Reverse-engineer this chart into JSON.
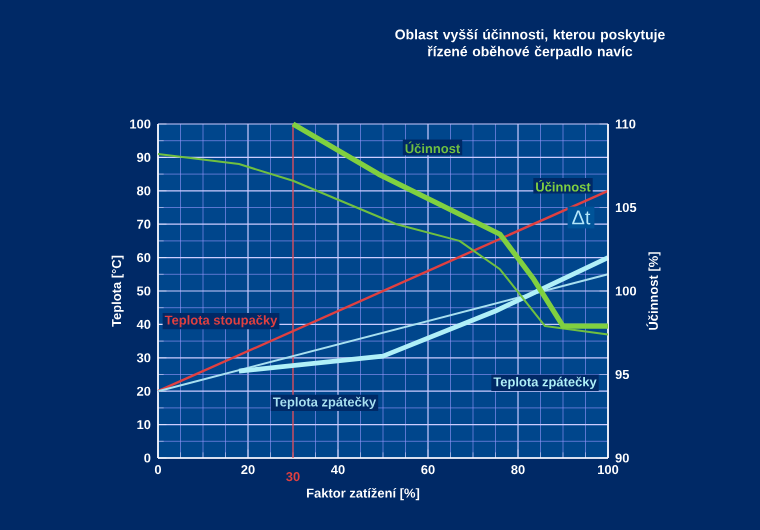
{
  "chart_data": {
    "type": "line",
    "title": "Oblast vyšší účinnosti, kterou poskytuje řízené oběhové čerpadlo navíc",
    "xlabel": "Faktor zatížení [%]",
    "ylabel": "Teplota [°C]",
    "y2label": "Účinnost [%]",
    "xlim": [
      0,
      100
    ],
    "ylim": [
      0,
      100
    ],
    "y2lim": [
      90,
      110
    ],
    "xticks": [
      0,
      20,
      40,
      60,
      80,
      100
    ],
    "yticks": [
      0,
      10,
      20,
      30,
      40,
      50,
      60,
      70,
      80,
      90,
      100
    ],
    "y2ticks": [
      90,
      95,
      100,
      105,
      110
    ],
    "grid": true,
    "marker": "none",
    "line_style": "solid",
    "ref_lines": [
      {
        "axis": "x",
        "value": 30,
        "label": "30",
        "color": "#e04040"
      }
    ],
    "annotations": [
      "Δt"
    ],
    "series": [
      {
        "name": "Teplota stoupačky",
        "color": "#e04040",
        "x": [
          0,
          100
        ],
        "values": [
          20,
          80
        ]
      },
      {
        "name": "Teplota zpátečky",
        "color": "#a8e0f0",
        "x": [
          0,
          100
        ],
        "values": [
          20,
          55
        ]
      },
      {
        "name": "Teplota zpátečky",
        "color": "#b0f0f8",
        "x": [
          18,
          50,
          75,
          100
        ],
        "values": [
          26,
          30.5,
          44,
          60
        ]
      },
      {
        "name": "Účinnost",
        "color": "#70c040",
        "axis": "y2",
        "x": [
          0,
          18,
          30,
          53,
          67,
          76,
          86,
          100
        ],
        "values": [
          108.2,
          107.6,
          106.6,
          104,
          103,
          101.3,
          97.9,
          97.4
        ]
      },
      {
        "name": "Účinnost",
        "color": "#80d040",
        "axis": "y2",
        "x": [
          30,
          49,
          76,
          83.5,
          90,
          100
        ],
        "values": [
          110,
          107,
          103.4,
          100.7,
          97.9,
          97.9
        ]
      }
    ]
  }
}
